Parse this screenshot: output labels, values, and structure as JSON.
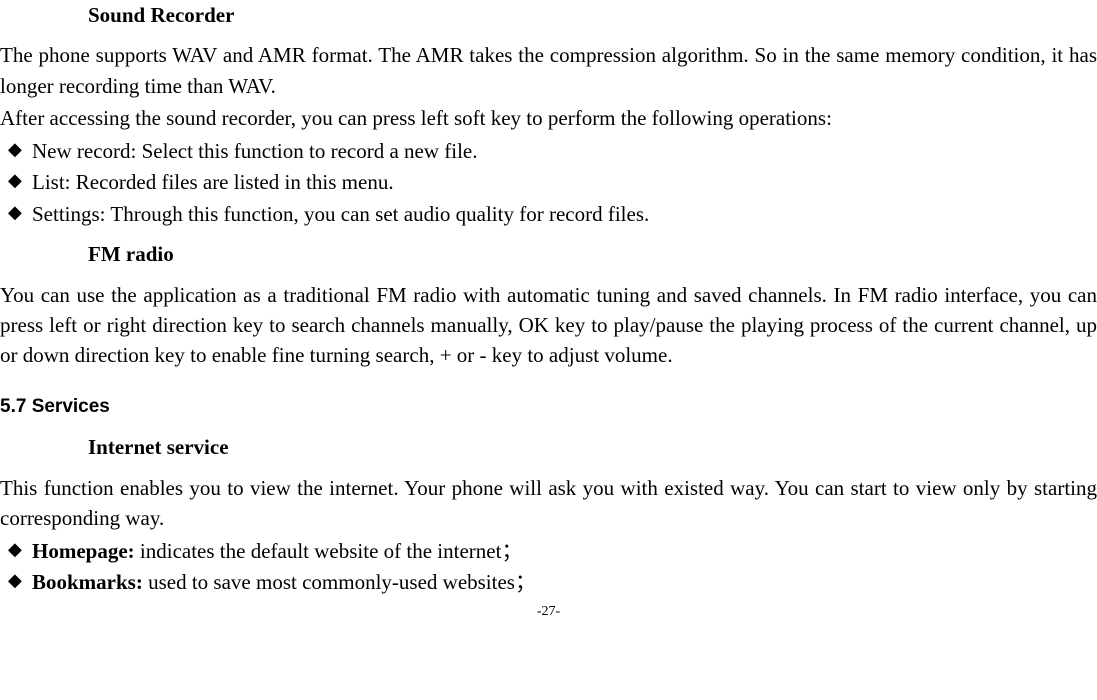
{
  "soundRecorder": {
    "heading": "Sound Recorder",
    "para1": "The phone supports WAV and AMR format. The AMR takes the compression algorithm. So in the same memory condition, it has longer recording time than WAV.",
    "para2": "After accessing the sound recorder, you can press left soft key to perform the following operations:",
    "bullets": {
      "b1": "New record: Select this function to record a new file.",
      "b2": "List: Recorded files are listed in this menu.",
      "b3": "Settings: Through this function, you can set audio quality for record files."
    }
  },
  "fmRadio": {
    "heading": "FM radio",
    "para": "You can use the application as a traditional FM radio with automatic tuning and saved channels. In FM radio interface, you can press left or right direction key to search channels manually, OK key to play/pause the playing process of the current channel, up or down direction key to enable fine turning search, + or - key to adjust volume."
  },
  "services": {
    "heading": "5.7  Services"
  },
  "internet": {
    "heading": "Internet service",
    "para": "This function enables you to view the internet. Your phone will ask you with existed way. You can start to view only by starting corresponding way.",
    "bullets": {
      "b1label": "Homepage:",
      "b1text": " indicates the default website of the internet；",
      "b2label": "Bookmarks:",
      "b2text": " used to save most commonly-used websites；"
    }
  },
  "pageNumber": "-27-"
}
